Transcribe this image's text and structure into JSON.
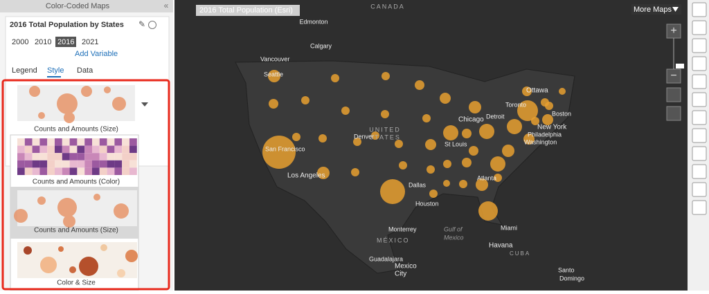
{
  "panel": {
    "title": "Color-Coded Maps",
    "variable": "2016 Total Population by States",
    "years": [
      "2000",
      "2010",
      "2016",
      "2021"
    ],
    "add_variable": "Add Variable",
    "tabs": [
      "Legend",
      "Style",
      "Data"
    ],
    "current_style": "Counts and Amounts (Size)",
    "style_options": [
      "Counts and Amounts (Color)",
      "Counts and Amounts (Size)",
      "Color & Size"
    ]
  },
  "map": {
    "title": "2016 Total Population (Esri)",
    "more_maps": "More Maps",
    "labels": [
      "CANADA",
      "Edmonton",
      "Calgary",
      "Vancouver",
      "Seattle",
      "San Francisco",
      "Los Angeles",
      "Denver",
      "UNITED",
      "STATES",
      "Chicago",
      "Detroit",
      "Toronto",
      "Ottawa",
      "Boston",
      "New York",
      "Philadelphia",
      "Washington",
      "St Louis",
      "Dallas",
      "Houston",
      "Atlanta",
      "Miami",
      "Monterrey",
      "Gulf of",
      "Mexico",
      "MÉXICO",
      "Havana",
      "CUBA",
      "Guadalajara",
      "Mexico",
      "City",
      "Santo",
      "Domingo"
    ]
  }
}
